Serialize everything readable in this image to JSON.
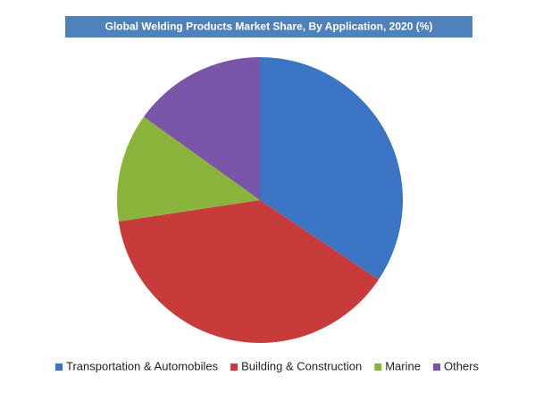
{
  "chart_data": {
    "type": "pie",
    "title": "Global Welding Products Market Share, By Application, 2020 (%)",
    "categories": [
      "Transportation & Automobiles",
      "Building & Construction",
      "Marine",
      "Others"
    ],
    "values": [
      34.4,
      38.2,
      12.3,
      15.1
    ],
    "colors": [
      "#3a74c2",
      "#c83b3b",
      "#8bb43c",
      "#7a54a6"
    ],
    "legend": "bottom"
  }
}
